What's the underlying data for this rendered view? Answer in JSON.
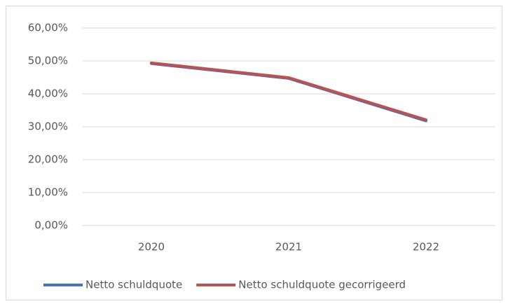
{
  "chart_data": {
    "type": "line",
    "categories": [
      "2020",
      "2021",
      "2022"
    ],
    "series": [
      {
        "name": "Netto schuldquote",
        "color": "#4472c4",
        "values": [
          49.2,
          44.7,
          31.8
        ]
      },
      {
        "name": "Netto schuldquote gecorrigeerd",
        "color": "#c0504d",
        "values": [
          49.4,
          44.9,
          32.1
        ]
      }
    ],
    "ylim": [
      0,
      60
    ],
    "yticks": [
      {
        "value": 0,
        "label": "0,00%"
      },
      {
        "value": 10,
        "label": "10,00%"
      },
      {
        "value": 20,
        "label": "20,00%"
      },
      {
        "value": 30,
        "label": "30,00%"
      },
      {
        "value": 40,
        "label": "40,00%"
      },
      {
        "value": 50,
        "label": "50,00%"
      },
      {
        "value": 60,
        "label": "60,00%"
      }
    ],
    "grid": true,
    "legend": "bottom"
  }
}
